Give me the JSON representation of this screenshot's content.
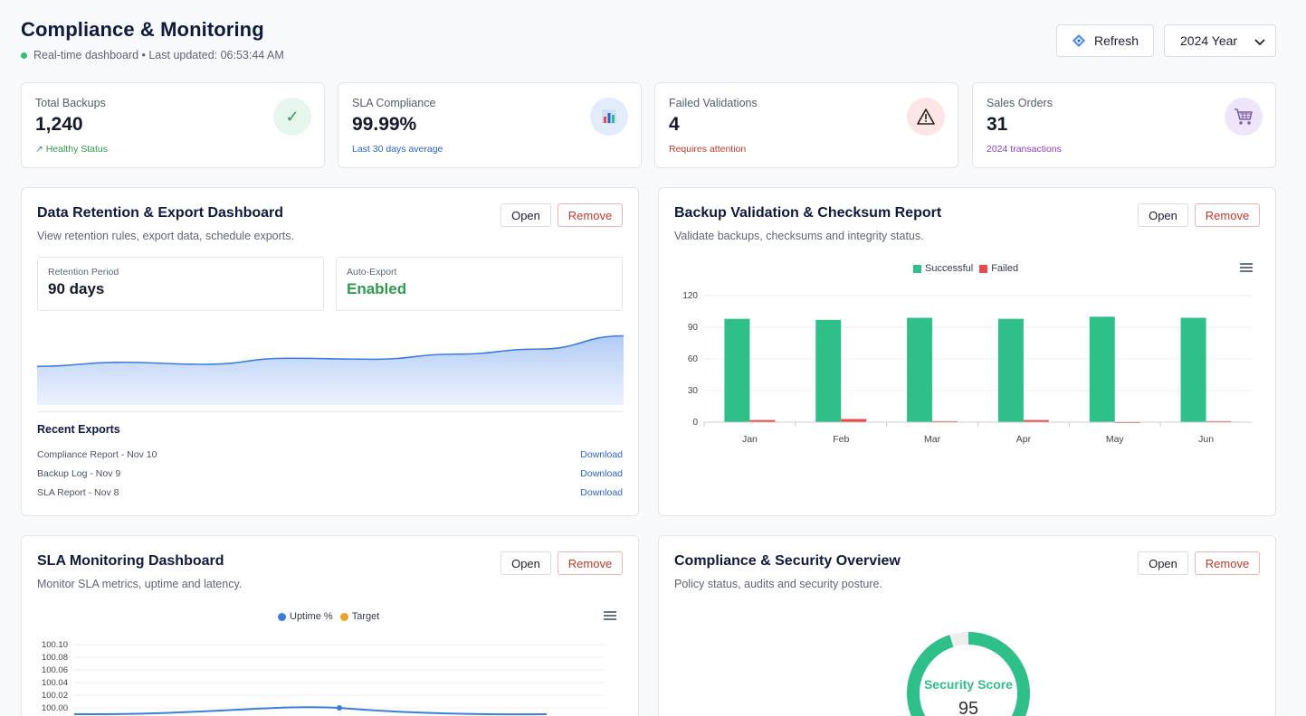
{
  "header": {
    "title": "Compliance & Monitoring",
    "subtitle": "Real-time dashboard • Last updated: 06:53:44 AM",
    "refresh_label": "Refresh",
    "year_label": "2024 Year"
  },
  "stats": [
    {
      "label": "Total Backups",
      "value": "1,240",
      "note": "↗ Healthy Status",
      "icon": "checkmark-icon",
      "color": "#2e9b4f"
    },
    {
      "label": "SLA Compliance",
      "value": "99.99%",
      "note": "Last 30 days average",
      "icon": "bar-chart-icon",
      "color": "#2e63c7"
    },
    {
      "label": "Failed Validations",
      "value": "4",
      "note": "Requires attention",
      "icon": "warning-icon",
      "color": "#c0392b"
    },
    {
      "label": "Sales Orders",
      "value": "31",
      "note": "2024 transactions",
      "icon": "cart-icon",
      "color": "#8a3fc0"
    }
  ],
  "retention": {
    "title": "Data Retention & Export Dashboard",
    "desc": "View retention rules, export data, schedule exports.",
    "open_label": "Open",
    "remove_label": "Remove",
    "period_label": "Retention Period",
    "period_value": "90 days",
    "export_label": "Auto-Export",
    "export_value": "Enabled",
    "exports_title": "Recent Exports",
    "exports": [
      {
        "name": "Compliance Report - Nov 10",
        "action": "Download"
      },
      {
        "name": "Backup Log - Nov 9",
        "action": "Download"
      },
      {
        "name": "SLA Report - Nov 8",
        "action": "Download"
      }
    ]
  },
  "validation": {
    "title": "Backup Validation & Checksum Report",
    "desc": "Validate backups, checksums and integrity status.",
    "open_label": "Open",
    "remove_label": "Remove"
  },
  "sla": {
    "title": "SLA Monitoring Dashboard",
    "desc": "Monitor SLA metrics, uptime and latency.",
    "open_label": "Open",
    "remove_label": "Remove"
  },
  "security": {
    "title": "Compliance & Security Overview",
    "desc": "Policy status, audits and security posture.",
    "open_label": "Open",
    "remove_label": "Remove",
    "score_label": "Security Score",
    "score_value": "95",
    "score_percent": 95
  },
  "chart_data": [
    {
      "type": "area",
      "values": [
        38,
        42,
        40,
        46,
        45,
        50,
        55,
        68
      ],
      "color": "#3b7ddd"
    },
    {
      "type": "bar",
      "categories": [
        "Jan",
        "Feb",
        "Mar",
        "Apr",
        "May",
        "Jun"
      ],
      "series": [
        {
          "name": "Successful",
          "values": [
            98,
            97,
            99,
            98,
            100,
            99
          ],
          "color": "#2fbf88"
        },
        {
          "name": "Failed",
          "values": [
            2,
            3,
            1,
            2,
            0,
            1
          ],
          "color": "#e94b4b"
        }
      ],
      "yticks": [
        "120",
        "90",
        "60",
        "30",
        "0"
      ],
      "ylim": [
        0,
        120
      ],
      "legend": "top-center",
      "grid": true
    },
    {
      "type": "line",
      "series": [
        {
          "name": "Uptime %",
          "color": "#3b7ddd"
        },
        {
          "name": "Target",
          "color": "#f0a020"
        }
      ],
      "yticks": [
        "100.10",
        "100.08",
        "100.06",
        "100.04",
        "100.02",
        "100.00"
      ],
      "ylim": [
        100.0,
        100.1
      ],
      "legend": "top-center",
      "grid": true
    }
  ]
}
